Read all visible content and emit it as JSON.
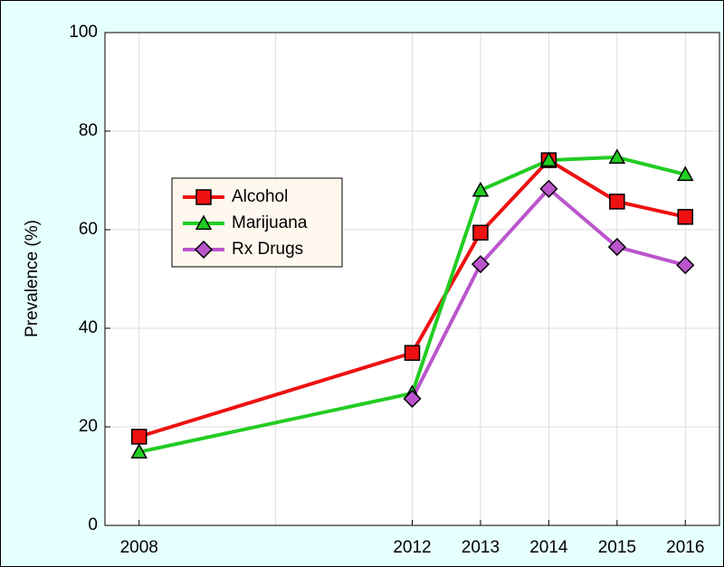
{
  "chart_data": {
    "type": "line",
    "ylabel": "Prevalence (%)",
    "x": [
      2008,
      2012,
      2013,
      2014,
      2015,
      2016
    ],
    "series": [
      {
        "name": "Alcohol",
        "color": "#ee1111",
        "marker": "square",
        "values": [
          18,
          35,
          59.4,
          74.1,
          65.7,
          62.6
        ]
      },
      {
        "name": "Marijuana",
        "color": "#22cc22",
        "marker": "triangle",
        "values": [
          14.9,
          26.8,
          68,
          74.1,
          74.7,
          71.2
        ]
      },
      {
        "name": "Rx Drugs",
        "color": "#bb55cc",
        "marker": "diamond",
        "values": [
          null,
          25.7,
          53,
          68.3,
          56.5,
          52.8
        ]
      }
    ],
    "xlim": [
      2007.5,
      2016.5
    ],
    "xticks": [
      2008,
      2012,
      2013,
      2014,
      2015,
      2016
    ],
    "xgrid": [
      2008,
      2010,
      2012,
      2013,
      2014,
      2015,
      2016
    ],
    "ylim": [
      0,
      100
    ],
    "yticks": [
      0,
      20,
      40,
      60,
      80,
      100
    ],
    "grid": true,
    "legend": "left"
  }
}
